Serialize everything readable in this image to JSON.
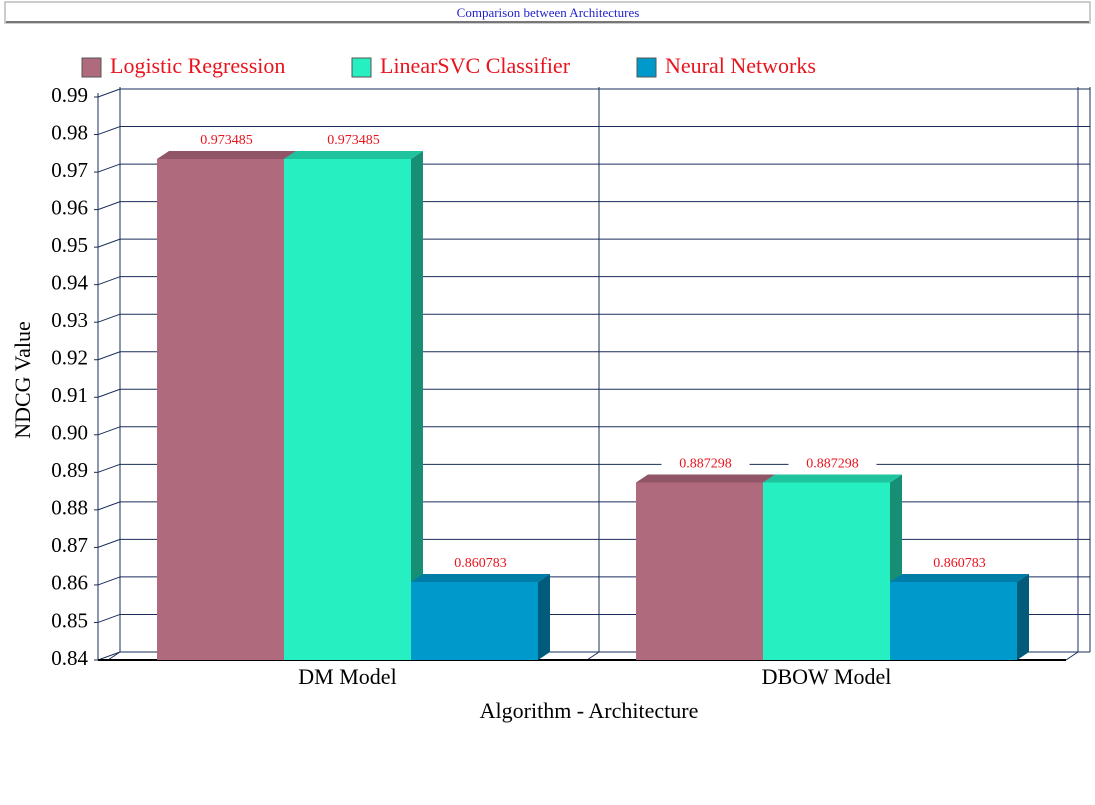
{
  "chart_data": {
    "type": "bar",
    "title": "Comparison between Architectures",
    "x_label": "Algorithm - Architecture",
    "y_label": "NDCG Value",
    "categories": [
      "DM Model",
      "DBOW Model"
    ],
    "series": [
      {
        "name": "Logistic Regression",
        "color": "#b06a7e",
        "values": [
          0.973485,
          0.887298
        ]
      },
      {
        "name": "LinearSVC Classifier",
        "color": "#26efc1",
        "values": [
          0.973485,
          0.887298
        ]
      },
      {
        "name": "Neural Networks",
        "color": "#0099cc",
        "values": [
          0.860783,
          0.860783
        ]
      }
    ],
    "ylim": [
      0.84,
      0.99
    ],
    "yticks": [
      0.84,
      0.85,
      0.86,
      0.87,
      0.88,
      0.89,
      {
        "value": 0.9,
        "label": "0.90"
      },
      0.91,
      0.92,
      0.93,
      0.94,
      0.95,
      0.96,
      0.97,
      0.98,
      0.99
    ],
    "grid": true
  }
}
